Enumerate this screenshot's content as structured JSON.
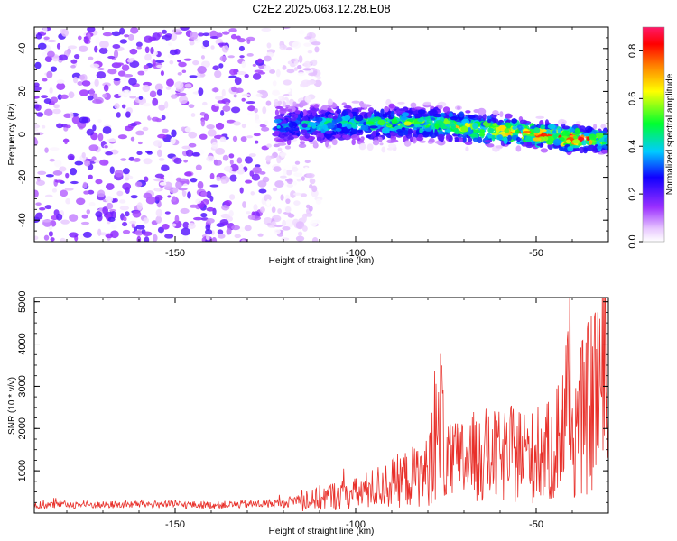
{
  "title": "C2E2.2025.063.12.28.E08",
  "colors": {
    "spectrogram_background": "#ffffff",
    "snr_line": "#e8302a",
    "axis": "#000000"
  },
  "chart_data": [
    {
      "type": "heatmap",
      "title": "C2E2.2025.063.12.28.E08",
      "xlabel": "Height of straight line (km)",
      "ylabel": "Frequency (Hz)",
      "xlim": [
        -189,
        -30
      ],
      "ylim": [
        -50,
        50
      ],
      "xticks": [
        -150,
        -100,
        -50
      ],
      "yticks": [
        -40,
        -20,
        0,
        20,
        40
      ],
      "colorbar": {
        "label": "Normalized spectral amplitude",
        "range": [
          0.0,
          0.9
        ],
        "ticks": [
          0.0,
          0.2,
          0.4,
          0.6,
          0.8
        ],
        "colormap": "rainbow (white-violet-blue-cyan-green-yellow-red-magenta)"
      },
      "description_points": [
        {
          "region": "noise",
          "x_range": [
            -189,
            -110
          ],
          "y_range": [
            -50,
            50
          ],
          "amplitude": 0.15
        },
        {
          "region": "signal-band",
          "x": [
            -122,
            -100,
            -80,
            -60,
            -40,
            -30
          ],
          "y_center": [
            4,
            5,
            5,
            2,
            -2,
            -3
          ],
          "amplitude": [
            0.35,
            0.45,
            0.55,
            0.7,
            0.85,
            0.6
          ]
        }
      ]
    },
    {
      "type": "line",
      "title": "",
      "xlabel": "Height of straight line (km)",
      "ylabel": "SNR (10 * v/v)",
      "xlim": [
        -189,
        -30
      ],
      "ylim": [
        0,
        5100
      ],
      "xticks": [
        -150,
        -100,
        -50
      ],
      "yticks": [
        1000,
        2000,
        3000,
        4000,
        5000
      ],
      "grid": false,
      "series": [
        {
          "x": [
            -189,
            -180,
            -170,
            -160,
            -150,
            -140,
            -130,
            -120,
            -115,
            -110,
            -105,
            -100,
            -95,
            -90,
            -85,
            -80,
            -76,
            -75,
            -70,
            -65,
            -60,
            -55,
            -50,
            -45,
            -41,
            -40,
            -38,
            -35,
            -33,
            -32,
            -31,
            -30
          ],
          "y": [
            180,
            200,
            190,
            210,
            200,
            190,
            210,
            230,
            350,
            550,
            650,
            700,
            900,
            1100,
            1300,
            1500,
            3600,
            1700,
            1900,
            2100,
            2000,
            2200,
            2000,
            2300,
            4250,
            2800,
            3300,
            3900,
            4900,
            4700,
            4300,
            3800
          ]
        }
      ]
    }
  ]
}
